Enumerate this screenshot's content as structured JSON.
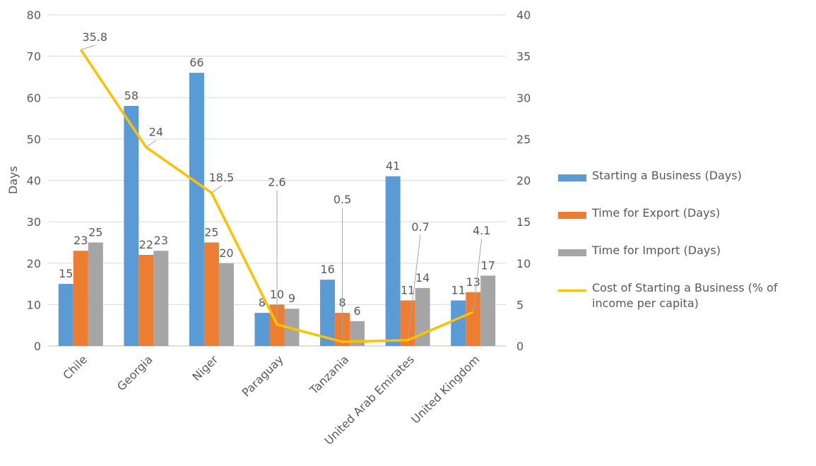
{
  "chart_data": {
    "type": "bar",
    "categories": [
      "Chile",
      "Georgia",
      "Niger",
      "Paraguay",
      "Tanzania",
      "United Arab Emirates",
      "United Kingdom"
    ],
    "series": [
      {
        "name": "Starting a Business (Days)",
        "kind": "bar",
        "axis": "left",
        "color": "#5B9BD5",
        "values": [
          15,
          58,
          66,
          8,
          16,
          41,
          11
        ]
      },
      {
        "name": "Time for Export (Days)",
        "kind": "bar",
        "axis": "left",
        "color": "#ED7D31",
        "values": [
          23,
          22,
          25,
          10,
          8,
          11,
          13
        ]
      },
      {
        "name": "Time for Import (Days)",
        "kind": "bar",
        "axis": "left",
        "color": "#A5A5A5",
        "values": [
          25,
          23,
          20,
          9,
          6,
          14,
          17
        ]
      },
      {
        "name": "Cost of Starting a Business (% of income per capita)",
        "kind": "line",
        "axis": "right",
        "color": "#FFC000",
        "values": [
          35.8,
          24,
          18.5,
          2.6,
          0.5,
          0.7,
          4.1
        ]
      }
    ],
    "line_labels": [
      "35.8",
      "24",
      "18.5",
      "2.6",
      "0.5",
      "0.7",
      "4.1"
    ],
    "title": "",
    "xlabel": "",
    "ylabel": "Days",
    "ylim": [
      0,
      80
    ],
    "y_ticks": [
      "0",
      "10",
      "20",
      "30",
      "40",
      "50",
      "60",
      "70",
      "80"
    ],
    "y2lim": [
      0,
      40
    ],
    "y2_ticks": [
      "0",
      "5",
      "10",
      "15",
      "20",
      "25",
      "30",
      "35",
      "40"
    ],
    "grid": true,
    "legend_position": "right"
  }
}
